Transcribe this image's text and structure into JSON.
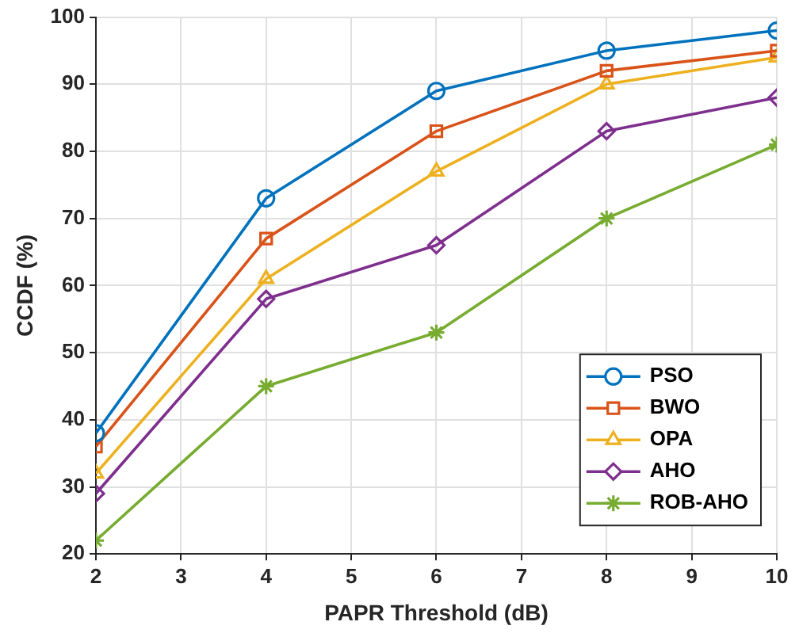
{
  "chart_data": {
    "type": "line",
    "xlabel": "PAPR Threshold (dB)",
    "ylabel": "CCDF (%)",
    "x": [
      2,
      4,
      6,
      8,
      10
    ],
    "series": [
      {
        "name": "PSO",
        "color": "#0072bd",
        "marker": "circle",
        "values": [
          38,
          73,
          89,
          95,
          98
        ]
      },
      {
        "name": "BWO",
        "color": "#d95319",
        "marker": "square",
        "values": [
          36,
          67,
          83,
          92,
          95
        ]
      },
      {
        "name": "OPA",
        "color": "#edb120",
        "marker": "triangle",
        "values": [
          32,
          61,
          77,
          90,
          94
        ]
      },
      {
        "name": "AHO",
        "color": "#7e2f8e",
        "marker": "diamond",
        "values": [
          29,
          58,
          66,
          83,
          88
        ]
      },
      {
        "name": "ROB-AHO",
        "color": "#77ac30",
        "marker": "cross",
        "values": [
          22,
          45,
          53,
          70,
          81
        ]
      }
    ],
    "xlim": [
      2,
      10
    ],
    "xticks": [
      2,
      3,
      4,
      5,
      6,
      7,
      8,
      9,
      10
    ],
    "ylim": [
      20,
      100
    ],
    "yticks": [
      20,
      30,
      40,
      50,
      60,
      70,
      80,
      90,
      100
    ],
    "grid": true,
    "legend": "bottom right",
    "line_style": "solid"
  }
}
